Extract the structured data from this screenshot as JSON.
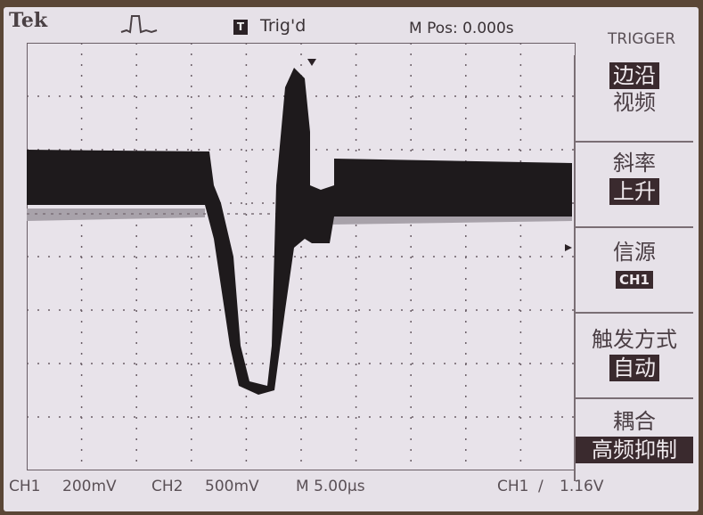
{
  "header": {
    "brand": "Tek",
    "acquire_icon": "pulse-run-icon",
    "trigger_badge": "T",
    "trigger_status": "Trig'd",
    "horizontal_position": "M Pos: 0.000s"
  },
  "menu": {
    "title": "TRIGGER",
    "items": [
      {
        "label": "边沿",
        "value": "视频",
        "label_highlighted": true
      },
      {
        "label": "斜率",
        "value": "上升"
      },
      {
        "label": "信源",
        "value": "CH1"
      },
      {
        "label": "触发方式",
        "value": "自动"
      },
      {
        "label": "耦合",
        "value": "高频抑制"
      }
    ]
  },
  "footer": {
    "ch1_label": "CH1",
    "ch1_scale": "200mV",
    "ch2_label": "CH2",
    "ch2_scale": "500mV",
    "timebase": "M 5.00μs",
    "trigger_source": "CH1",
    "trigger_slope_icon": "rising-edge-icon",
    "trigger_level": "1.16V"
  },
  "colors": {
    "screen": "#e6e1e8",
    "trace_ch1": "#1e1a1c",
    "trace_ch2": "#9e98a0",
    "highlight": "#3a2a2e"
  }
}
